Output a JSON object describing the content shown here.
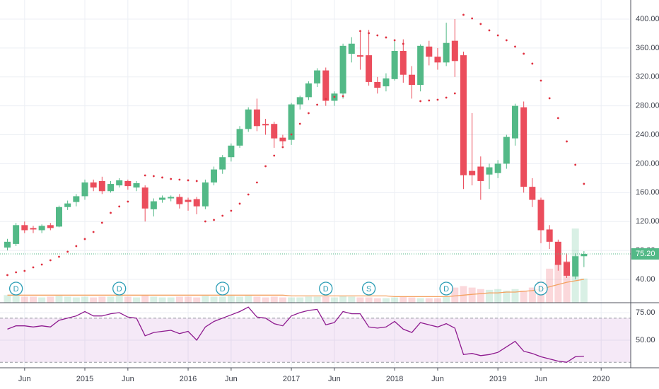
{
  "chart_data": [
    {
      "type": "candlestick",
      "x": [
        "2014-04",
        "2014-05",
        "2014-06",
        "2014-07",
        "2014-08",
        "2014-09",
        "2014-10",
        "2014-11",
        "2014-12",
        "2015-01",
        "2015-02",
        "2015-03",
        "2015-04",
        "2015-05",
        "2015-06",
        "2015-07",
        "2015-08",
        "2015-09",
        "2015-10",
        "2015-11",
        "2015-12",
        "2016-01",
        "2016-02",
        "2016-03",
        "2016-04",
        "2016-05",
        "2016-06",
        "2016-07",
        "2016-08",
        "2016-09",
        "2016-10",
        "2016-11",
        "2016-12",
        "2017-01",
        "2017-02",
        "2017-03",
        "2017-04",
        "2017-05",
        "2017-06",
        "2017-07",
        "2017-08",
        "2017-09",
        "2017-10",
        "2017-11",
        "2017-12",
        "2018-01",
        "2018-02",
        "2018-03",
        "2018-04",
        "2018-05",
        "2018-06",
        "2018-07",
        "2018-08",
        "2018-09",
        "2018-10",
        "2018-11",
        "2018-12",
        "2019-01",
        "2019-02",
        "2019-03",
        "2019-04",
        "2019-05",
        "2019-06",
        "2019-07",
        "2019-08",
        "2019-09",
        "2019-10",
        "2019-11"
      ],
      "open": [
        84,
        89,
        115,
        111,
        108,
        115,
        113,
        140,
        147,
        155,
        174,
        176,
        162,
        170,
        176,
        167,
        167,
        137,
        150,
        152,
        154,
        150,
        151,
        141,
        174,
        192,
        209,
        225,
        248,
        275,
        255,
        255,
        236,
        233,
        282,
        292,
        311,
        329,
        287,
        297,
        352,
        350,
        350,
        313,
        307,
        317,
        356,
        323,
        309,
        362,
        348,
        340,
        370,
        350,
        190,
        196,
        185,
        187,
        200,
        235,
        278,
        168,
        150,
        109,
        92,
        64,
        44,
        72
      ],
      "high": [
        96,
        118,
        120,
        114,
        116,
        118,
        142,
        149,
        158,
        178,
        178,
        182,
        176,
        180,
        178,
        176,
        170,
        152,
        156,
        156,
        158,
        153,
        154,
        178,
        196,
        212,
        228,
        252,
        278,
        290,
        262,
        258,
        240,
        284,
        294,
        314,
        332,
        333,
        300,
        366,
        375,
        382,
        385,
        320,
        325,
        370,
        372,
        335,
        365,
        370,
        360,
        395,
        400,
        355,
        270,
        210,
        200,
        205,
        240,
        283,
        286,
        180,
        153,
        115,
        95,
        76,
        76,
        79
      ],
      "low": [
        80,
        86,
        104,
        104,
        104,
        108,
        112,
        136,
        141,
        150,
        162,
        158,
        160,
        167,
        164,
        162,
        120,
        127,
        146,
        148,
        138,
        135,
        130,
        137,
        170,
        186,
        203,
        222,
        244,
        245,
        240,
        222,
        225,
        226,
        275,
        288,
        306,
        280,
        280,
        290,
        340,
        330,
        308,
        297,
        300,
        315,
        312,
        290,
        300,
        336,
        330,
        335,
        320,
        165,
        170,
        150,
        165,
        180,
        193,
        225,
        160,
        140,
        90,
        82,
        52,
        42,
        40,
        57
      ],
      "close": [
        92,
        115,
        108,
        109,
        114,
        111,
        140,
        145,
        155,
        174,
        167,
        162,
        172,
        177,
        169,
        173,
        138,
        148,
        153,
        154,
        144,
        147,
        141,
        174,
        192,
        209,
        225,
        248,
        275,
        252,
        253,
        235,
        231,
        282,
        292,
        311,
        329,
        287,
        297,
        363,
        366,
        348,
        313,
        305,
        318,
        356,
        323,
        309,
        363,
        348,
        340,
        367,
        342,
        184,
        184,
        176,
        195,
        200,
        237,
        280,
        168,
        150,
        108,
        92,
        60,
        45,
        72,
        75.2
      ],
      "up_color": "#53b987",
      "down_color": "#eb4d5c",
      "sar": [
        45.9,
        49.8,
        51.7,
        56.6,
        60.5,
        66.4,
        71.3,
        78.2,
        86,
        95.8,
        105.5,
        118.3,
        132,
        140.8,
        147.6,
        null,
        183.8,
        182.8,
        180.9,
        178.9,
        177.9,
        177,
        176,
        120.2,
        122.2,
        128,
        134.9,
        144.7,
        157.4,
        174,
        196.5,
        211.2,
        222.9,
        240.5,
        255.2,
        269.9,
        281.6,
        289.5,
        292.4,
        293.4,
        null,
        383.4,
        380.5,
        377.5,
        374.6,
        370.7,
        365.8,
        null,
        286.5,
        287.5,
        288.5,
        291.4,
        297.3,
        405.9,
        401,
        393.2,
        384.4,
        377.5,
        370.7,
        361.9,
        352.1,
        338.4,
        314.9,
        290.5,
        263,
        230.8,
        198.5,
        172.1
      ],
      "sar_color": "#e0303f",
      "volume": [
        10,
        9,
        8,
        8,
        7,
        8,
        9,
        8,
        7,
        8,
        7,
        8,
        8,
        9,
        8,
        7,
        10,
        8,
        7,
        7,
        8,
        8,
        7,
        9,
        8,
        8,
        9,
        8,
        9,
        8,
        7,
        8,
        7,
        7,
        7,
        8,
        8,
        8,
        7,
        9,
        8,
        7,
        7,
        6,
        6,
        7,
        8,
        7,
        6,
        6,
        6,
        8,
        20,
        22,
        20,
        18,
        17,
        18,
        16,
        18,
        16,
        20,
        28,
        45,
        52,
        55,
        98,
        32
      ],
      "volume_ylim": [
        0,
        400
      ],
      "volume_ma": [
        10,
        10,
        10,
        10,
        10,
        10,
        10,
        10,
        10,
        10,
        10,
        10,
        10,
        10,
        10,
        10,
        10,
        10,
        10,
        10,
        10,
        10,
        10,
        10,
        10,
        10,
        10,
        10,
        10,
        10,
        10,
        10,
        10,
        9,
        9,
        9,
        9,
        9,
        9,
        9,
        9,
        9,
        9,
        9,
        9,
        8,
        8,
        8,
        8,
        8,
        8,
        8,
        9,
        10,
        11,
        12,
        13,
        13,
        14,
        14,
        15,
        16,
        18,
        21,
        24,
        27,
        29,
        31
      ],
      "volume_ma_color": "#f4a261",
      "events": [
        {
          "label": "D",
          "x": "2014-05"
        },
        {
          "label": "D",
          "x": "2015-05"
        },
        {
          "label": "D",
          "x": "2016-05"
        },
        {
          "label": "D",
          "x": "2017-05"
        },
        {
          "label": "S",
          "x": "2017-10"
        },
        {
          "label": "D",
          "x": "2018-07"
        },
        {
          "label": "D",
          "x": "2019-06"
        }
      ],
      "event_color": "#2a9db5",
      "last_price": {
        "value": 75.2,
        "label": "75.20"
      },
      "ylim": [
        7.7,
        426.4
      ],
      "yticks": [
        {
          "value": 40,
          "label": "40.00"
        },
        {
          "value": 80,
          "label": "80.00"
        },
        {
          "value": 120,
          "label": "120.00"
        },
        {
          "value": 160,
          "label": "160.00"
        },
        {
          "value": 200,
          "label": "200.00"
        },
        {
          "value": 240,
          "label": "240.00"
        },
        {
          "value": 280,
          "label": "280.00"
        },
        {
          "value": 320,
          "label": "320.00"
        },
        {
          "value": 360,
          "label": "360.00"
        },
        {
          "value": 400,
          "label": "400.00"
        }
      ],
      "grid": true
    },
    {
      "type": "line",
      "x": [
        "2014-04",
        "2014-05",
        "2014-06",
        "2014-07",
        "2014-08",
        "2014-09",
        "2014-10",
        "2014-11",
        "2014-12",
        "2015-01",
        "2015-02",
        "2015-03",
        "2015-04",
        "2015-05",
        "2015-06",
        "2015-07",
        "2015-08",
        "2015-09",
        "2015-10",
        "2015-11",
        "2015-12",
        "2016-01",
        "2016-02",
        "2016-03",
        "2016-04",
        "2016-05",
        "2016-06",
        "2016-07",
        "2016-08",
        "2016-09",
        "2016-10",
        "2016-11",
        "2016-12",
        "2017-01",
        "2017-02",
        "2017-03",
        "2017-04",
        "2017-05",
        "2017-06",
        "2017-07",
        "2017-08",
        "2017-09",
        "2017-10",
        "2017-11",
        "2017-12",
        "2018-01",
        "2018-02",
        "2018-03",
        "2018-04",
        "2018-05",
        "2018-06",
        "2018-07",
        "2018-08",
        "2018-09",
        "2018-10",
        "2018-11",
        "2018-12",
        "2019-01",
        "2019-02",
        "2019-03",
        "2019-04",
        "2019-05",
        "2019-06",
        "2019-07",
        "2019-08",
        "2019-09",
        "2019-10",
        "2019-11"
      ],
      "values": [
        60,
        63,
        63,
        62,
        63,
        62,
        68,
        70,
        72,
        76,
        72,
        72,
        74,
        75,
        71,
        70,
        54,
        57,
        58,
        59,
        56,
        58,
        50,
        62,
        67,
        70,
        73,
        76,
        80,
        71,
        70,
        65,
        63,
        72,
        75,
        77,
        78,
        64,
        66,
        76,
        74,
        74,
        62,
        61,
        62,
        67,
        60,
        57,
        66,
        64,
        62,
        65,
        61,
        37,
        38,
        36,
        37,
        39,
        44,
        49,
        40,
        38,
        35,
        33,
        31,
        30,
        35,
        35.5
      ],
      "color": "#8e1a8f",
      "band": [
        30,
        70
      ],
      "band_color": "#9c27b0",
      "ylim": [
        25,
        84
      ],
      "yticks": [
        {
          "value": 50,
          "label": "50.00"
        },
        {
          "value": 75,
          "label": "75.00"
        }
      ],
      "xticks": [
        {
          "value": "2014-06",
          "label": "Jun"
        },
        {
          "value": "2015-01",
          "label": "2015"
        },
        {
          "value": "2015-06",
          "label": "Jun"
        },
        {
          "value": "2016-01",
          "label": "2016"
        },
        {
          "value": "2016-06",
          "label": "Jun"
        },
        {
          "value": "2017-01",
          "label": "2017"
        },
        {
          "value": "2017-06",
          "label": "Jun"
        },
        {
          "value": "2018-01",
          "label": "2018"
        },
        {
          "value": "2018-06",
          "label": "Jun"
        },
        {
          "value": "2019-01",
          "label": "2019"
        },
        {
          "value": "2019-06",
          "label": "Jun"
        },
        {
          "value": "2020-01",
          "label": "2020"
        }
      ],
      "grid": true
    }
  ]
}
